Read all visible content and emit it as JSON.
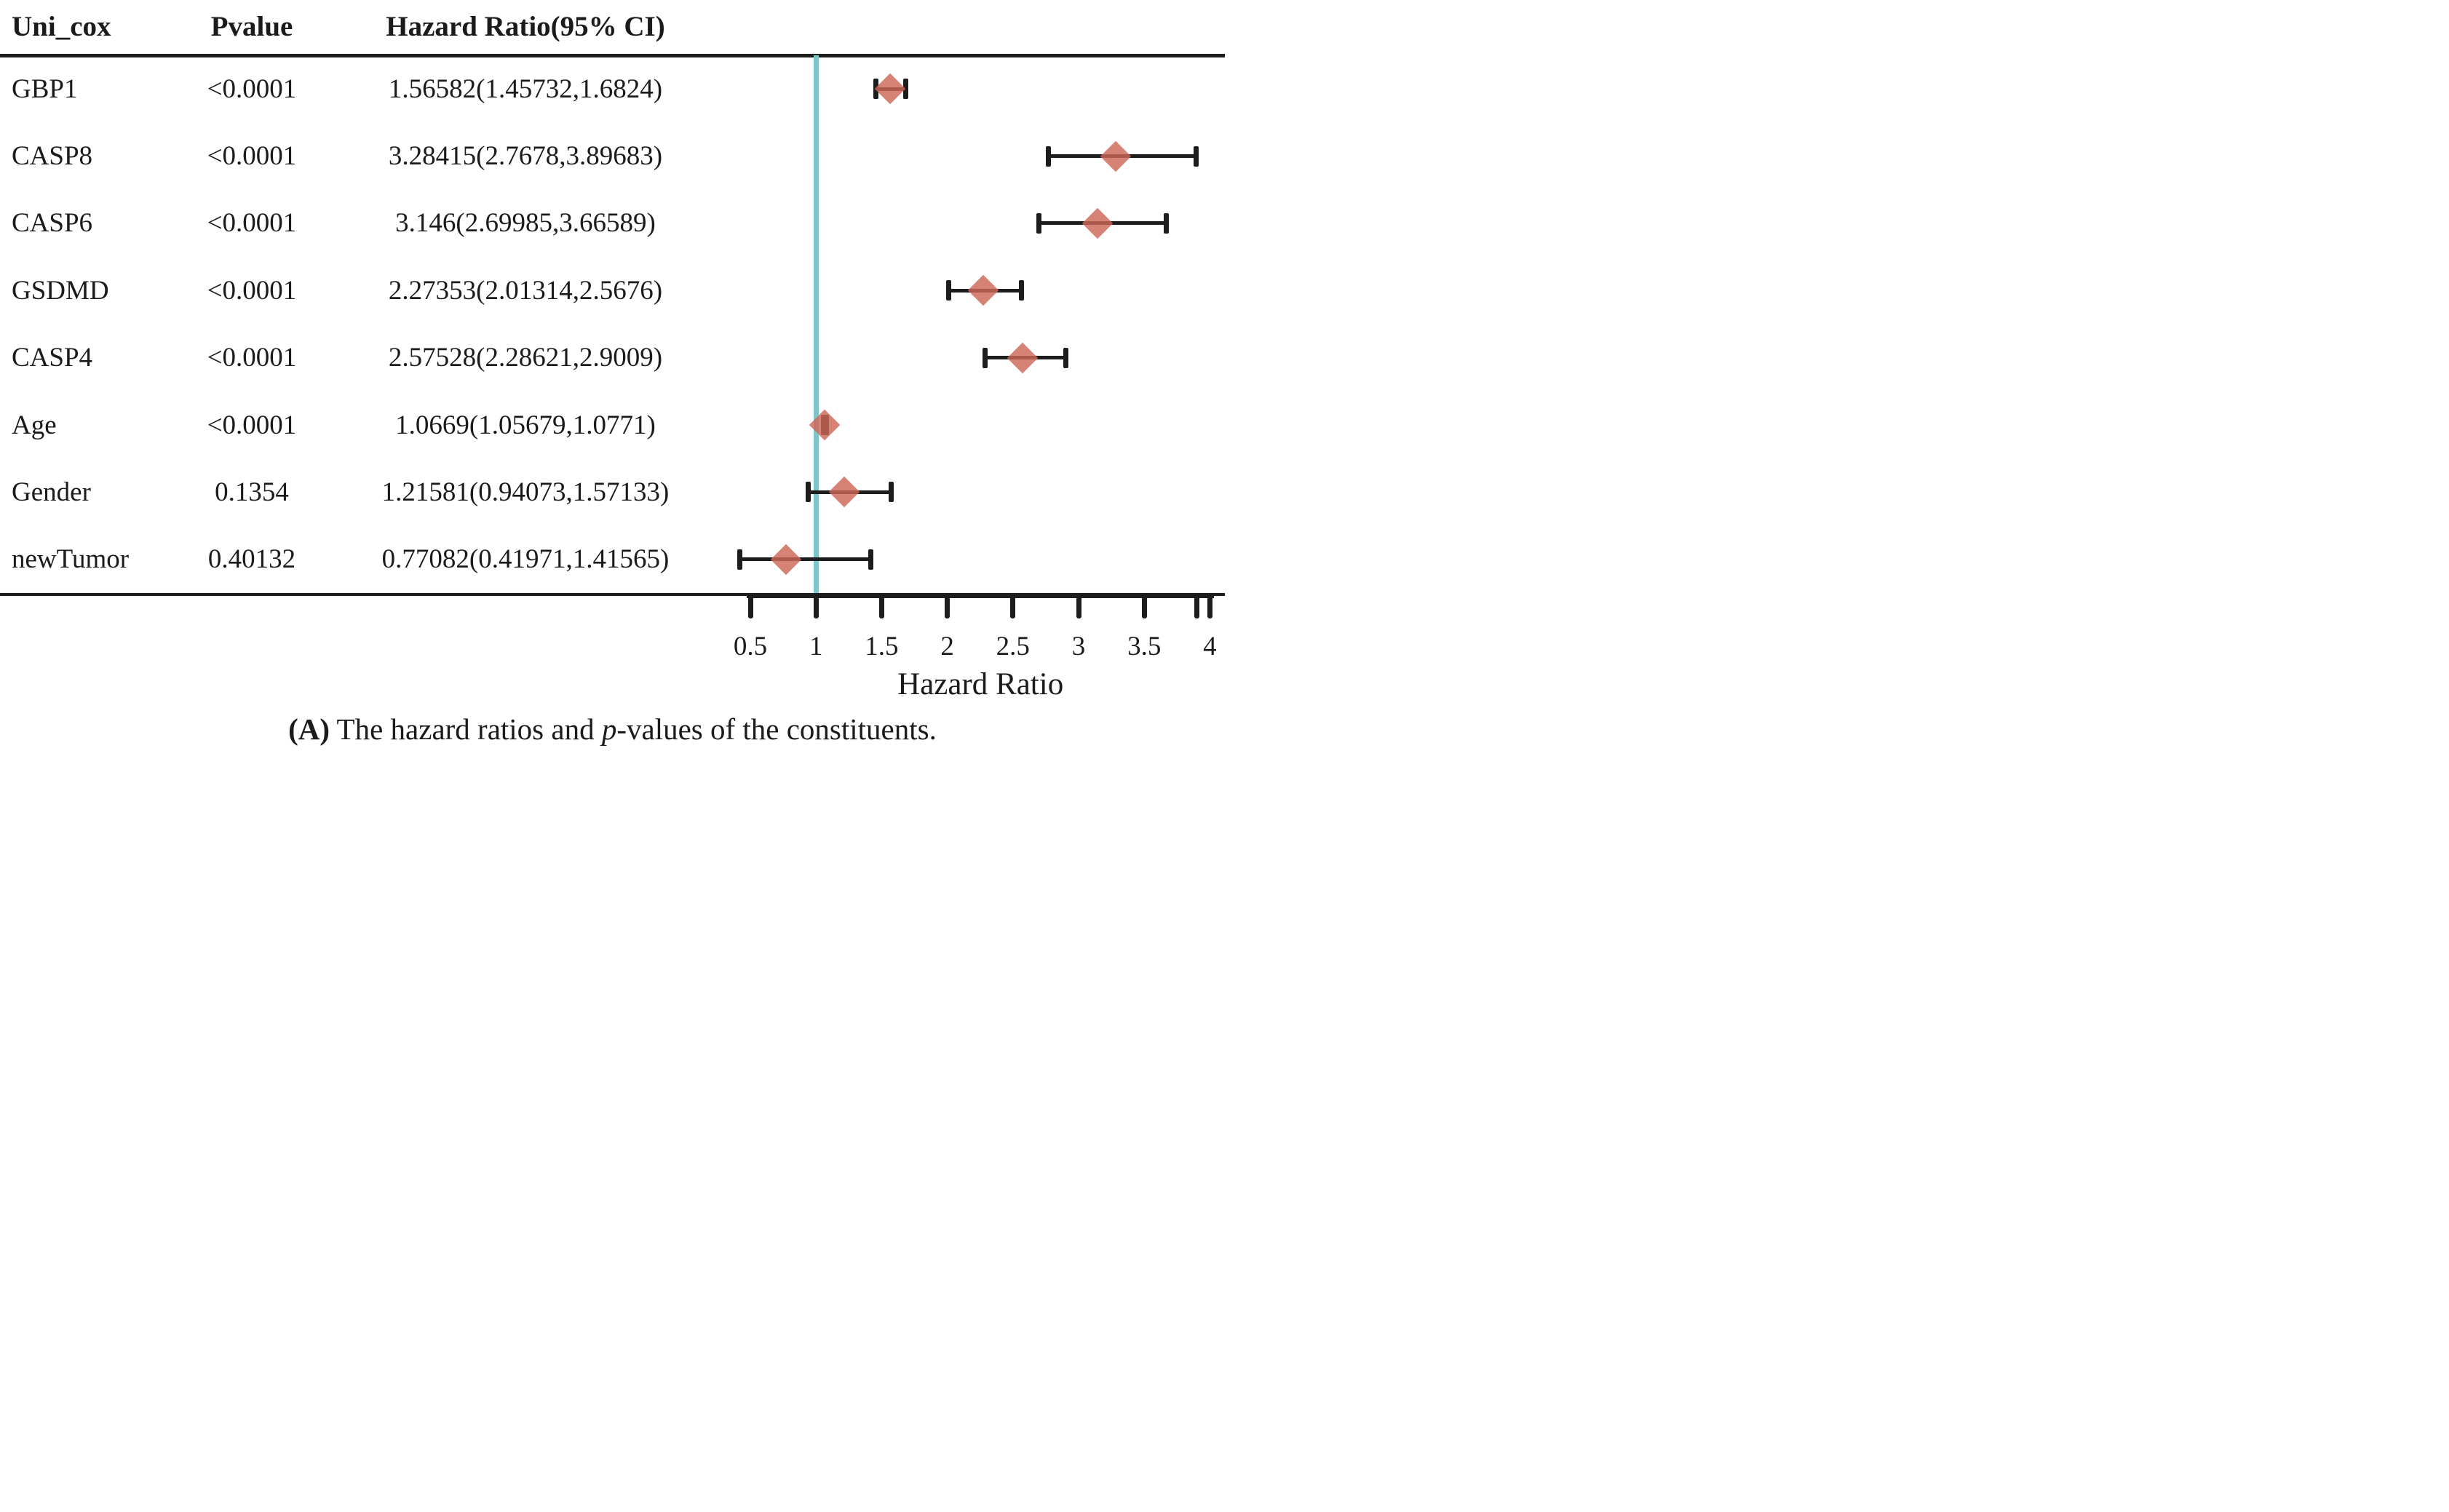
{
  "header": {
    "col_variable": "Uni_cox",
    "col_pvalue": "Pvalue",
    "col_hr_ci": "Hazard Ratio(95% CI)"
  },
  "caption": {
    "bold": "(A)",
    "mid": " The hazard ratios and ",
    "italic": "p",
    "end": "-values of the constituents."
  },
  "colors": {
    "reference_line": "#7cc5c8",
    "marker_fill": "#ce6b58",
    "line_color": "#1d1d1d"
  },
  "chart_data": {
    "type": "scatter",
    "variant": "forest-plot",
    "title": "",
    "xlabel": "Hazard Ratio",
    "axis": {
      "min": 0.5,
      "max": 4,
      "tick_values": [
        0.5,
        1,
        1.5,
        2,
        2.5,
        3,
        3.5,
        4
      ],
      "tick_labels": [
        "0.5",
        "1",
        "1.5",
        "2",
        "2.5",
        "3",
        "3.5",
        "4"
      ],
      "extra_end_tick_value": 3.9,
      "reference_value": 1
    },
    "rows": [
      {
        "name": "GBP1",
        "pvalue": "<0.0001",
        "ci_text": "1.56582(1.45732,1.6824)",
        "hr": 1.56582,
        "low": 1.45732,
        "high": 1.6824
      },
      {
        "name": "CASP8",
        "pvalue": "<0.0001",
        "ci_text": "3.28415(2.7678,3.89683)",
        "hr": 3.28415,
        "low": 2.7678,
        "high": 3.89683
      },
      {
        "name": "CASP6",
        "pvalue": "<0.0001",
        "ci_text": "3.146(2.69985,3.66589)",
        "hr": 3.146,
        "low": 2.69985,
        "high": 3.66589
      },
      {
        "name": "GSDMD",
        "pvalue": "<0.0001",
        "ci_text": "2.27353(2.01314,2.5676)",
        "hr": 2.27353,
        "low": 2.01314,
        "high": 2.5676
      },
      {
        "name": "CASP4",
        "pvalue": "<0.0001",
        "ci_text": "2.57528(2.28621,2.9009)",
        "hr": 2.57528,
        "low": 2.28621,
        "high": 2.9009
      },
      {
        "name": "Age",
        "pvalue": "<0.0001",
        "ci_text": "1.0669(1.05679,1.0771)",
        "hr": 1.0669,
        "low": 1.05679,
        "high": 1.0771
      },
      {
        "name": "Gender",
        "pvalue": "0.1354",
        "ci_text": "1.21581(0.94073,1.57133)",
        "hr": 1.21581,
        "low": 0.94073,
        "high": 1.57133
      },
      {
        "name": "newTumor",
        "pvalue": "0.40132",
        "ci_text": "0.77082(0.41971,1.41565)",
        "hr": 0.77082,
        "low": 0.41971,
        "high": 1.41565
      }
    ]
  }
}
